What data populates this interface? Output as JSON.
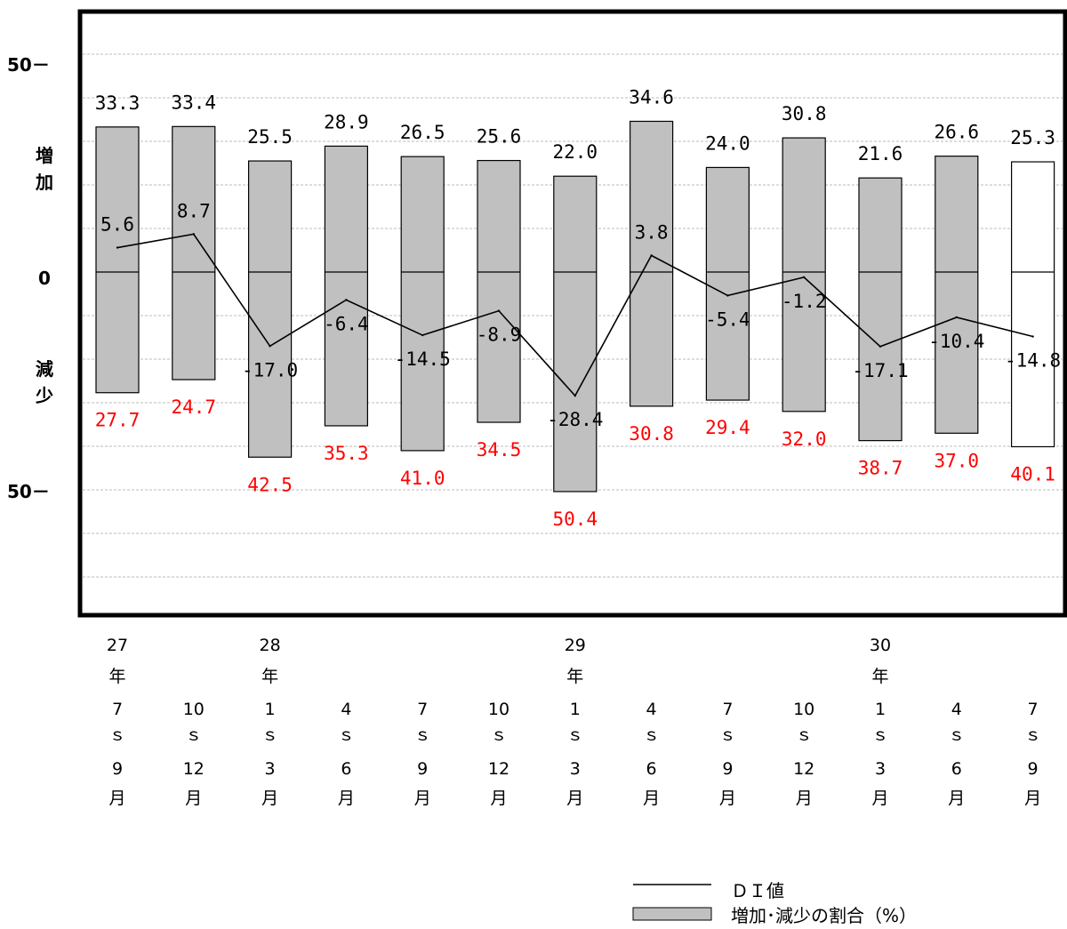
{
  "chart_data": {
    "type": "bar",
    "description_free": true,
    "y_axis": {
      "ticks": [
        {
          "value": 50,
          "label": "50－"
        },
        {
          "value": 0,
          "label": "0"
        },
        {
          "value": -50,
          "label": "50－"
        }
      ],
      "upper_label": [
        "増",
        "加"
      ],
      "lower_label": [
        "減",
        "少"
      ],
      "range": [
        -80,
        60
      ]
    },
    "categories": [
      {
        "year": "27",
        "year_unit": "年",
        "start": "7",
        "end": "9",
        "month_unit": "月"
      },
      {
        "year": "",
        "year_unit": "",
        "start": "10",
        "end": "12",
        "month_unit": "月"
      },
      {
        "year": "28",
        "year_unit": "年",
        "start": "1",
        "end": "3",
        "month_unit": "月"
      },
      {
        "year": "",
        "year_unit": "",
        "start": "4",
        "end": "6",
        "month_unit": "月"
      },
      {
        "year": "",
        "year_unit": "",
        "start": "7",
        "end": "9",
        "month_unit": "月"
      },
      {
        "year": "",
        "year_unit": "",
        "start": "10",
        "end": "12",
        "month_unit": "月"
      },
      {
        "year": "29",
        "year_unit": "年",
        "start": "1",
        "end": "3",
        "month_unit": "月"
      },
      {
        "year": "",
        "year_unit": "",
        "start": "4",
        "end": "6",
        "month_unit": "月"
      },
      {
        "year": "",
        "year_unit": "",
        "start": "7",
        "end": "9",
        "month_unit": "月"
      },
      {
        "year": "",
        "year_unit": "",
        "start": "10",
        "end": "12",
        "month_unit": "月"
      },
      {
        "year": "30",
        "year_unit": "年",
        "start": "1",
        "end": "3",
        "month_unit": "月"
      },
      {
        "year": "",
        "year_unit": "",
        "start": "4",
        "end": "6",
        "month_unit": "月"
      },
      {
        "year": "",
        "year_unit": "",
        "start": "7",
        "end": "9",
        "month_unit": "月"
      }
    ],
    "range_mark": "ｓ",
    "increase": [
      33.3,
      33.4,
      25.5,
      28.9,
      26.5,
      25.6,
      22.0,
      34.6,
      24.0,
      30.8,
      21.6,
      26.6,
      25.3
    ],
    "increase_labels": [
      "33.3",
      "33.4",
      "25.5",
      "28.9",
      "26.5",
      "25.6",
      "22.0",
      "34.6",
      "24.0",
      "30.8",
      "21.6",
      "26.6",
      "25.3"
    ],
    "decrease": [
      27.7,
      24.7,
      42.5,
      35.3,
      41.0,
      34.5,
      50.4,
      30.8,
      29.4,
      32.0,
      38.7,
      37.0,
      40.1
    ],
    "decrease_labels": [
      "27.7",
      "24.7",
      "42.5",
      "35.3",
      "41.0",
      "34.5",
      "50.4",
      "30.8",
      "29.4",
      "32.0",
      "38.7",
      "37.0",
      "40.1"
    ],
    "di": [
      5.6,
      8.7,
      -17.0,
      -6.4,
      -14.5,
      -8.9,
      -28.4,
      3.8,
      -5.4,
      -1.2,
      -17.1,
      -10.4,
      -14.8
    ],
    "di_labels": [
      "5.6",
      "8.7",
      "-17.0",
      "-6.4",
      "-14.5",
      "-8.9",
      "-28.4",
      "3.8",
      "-5.4",
      "-1.2",
      "-17.1",
      "-10.4",
      "-14.8"
    ],
    "forecast_index": 12,
    "legend": {
      "line_label": "ＤＩ値",
      "bar_label": "増加･減少の割合（%）"
    },
    "colors": {
      "bar_fill": "#c0c0c0",
      "forecast_fill": "#ffffff",
      "decrease_text": "#ff0000",
      "increase_text": "#000000",
      "grid": "#bbbbbb"
    },
    "grid": "dashed-horizontal"
  }
}
